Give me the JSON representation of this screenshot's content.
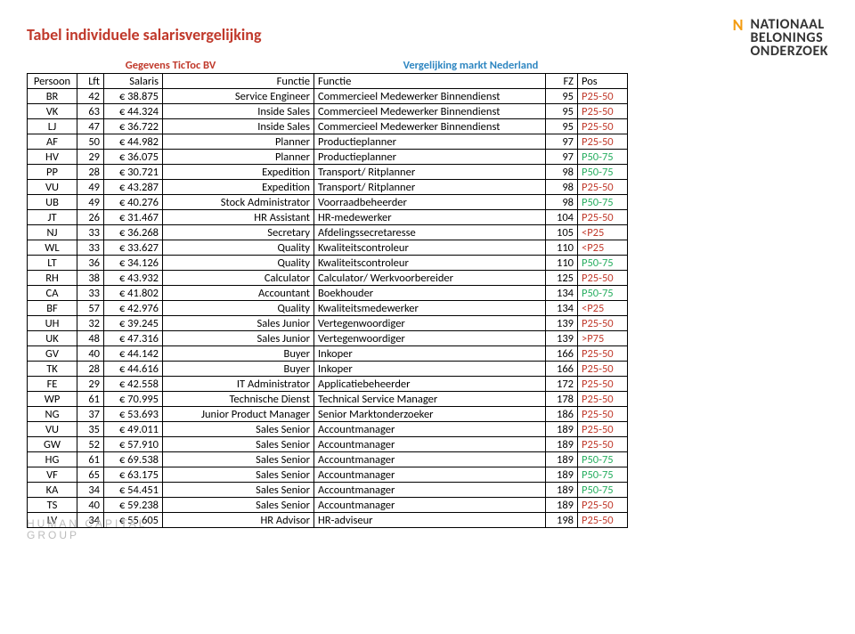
{
  "title": "Tabel individuele salarisvergelijking",
  "logo_lines": [
    "NATIONAAL",
    "BELONINGS",
    "ONDERZOEK"
  ],
  "footer_lines": [
    "HUMAN CAPITAL",
    "GROUP"
  ],
  "super_header_left": "Gegevens TicToc BV",
  "super_header_right": "Vergelijking markt Nederland",
  "columns": {
    "persoon": "Persoon",
    "lft": "Lft",
    "salaris": "Salaris",
    "functie1": "Functie",
    "functie2": "Functie",
    "fz": "FZ",
    "pos": "Pos"
  },
  "pos_color_map": {
    "P25-50": "pos-p25-50",
    "P50-75": "pos-p50-75",
    "<P25": "pos-ltp25",
    ">P75": "pos-gtp75"
  },
  "rows": [
    {
      "persoon": "BR",
      "lft": 42,
      "salaris": "€ 38.875",
      "functie1": "Service Engineer",
      "functie2": "Commercieel Medewerker Binnendienst",
      "fz": 95,
      "pos": "P25-50"
    },
    {
      "persoon": "VK",
      "lft": 63,
      "salaris": "€ 44.324",
      "functie1": "Inside Sales",
      "functie2": "Commercieel Medewerker Binnendienst",
      "fz": 95,
      "pos": "P25-50"
    },
    {
      "persoon": "LJ",
      "lft": 47,
      "salaris": "€ 36.722",
      "functie1": "Inside Sales",
      "functie2": "Commercieel Medewerker Binnendienst",
      "fz": 95,
      "pos": "P25-50"
    },
    {
      "persoon": "AF",
      "lft": 50,
      "salaris": "€ 44.982",
      "functie1": "Planner",
      "functie2": "Productieplanner",
      "fz": 97,
      "pos": "P25-50"
    },
    {
      "persoon": "HV",
      "lft": 29,
      "salaris": "€ 36.075",
      "functie1": "Planner",
      "functie2": "Productieplanner",
      "fz": 97,
      "pos": "P50-75"
    },
    {
      "persoon": "PP",
      "lft": 28,
      "salaris": "€ 30.721",
      "functie1": "Expedition",
      "functie2": "Transport/ Ritplanner",
      "fz": 98,
      "pos": "P50-75"
    },
    {
      "persoon": "VU",
      "lft": 49,
      "salaris": "€ 43.287",
      "functie1": "Expedition",
      "functie2": "Transport/ Ritplanner",
      "fz": 98,
      "pos": "P25-50"
    },
    {
      "persoon": "UB",
      "lft": 49,
      "salaris": "€ 40.276",
      "functie1": "Stock Administrator",
      "functie2": "Voorraadbeheerder",
      "fz": 98,
      "pos": "P50-75"
    },
    {
      "persoon": "JT",
      "lft": 26,
      "salaris": "€ 31.467",
      "functie1": "HR Assistant",
      "functie2": "HR-medewerker",
      "fz": 104,
      "pos": "P25-50"
    },
    {
      "persoon": "NJ",
      "lft": 33,
      "salaris": "€ 36.268",
      "functie1": "Secretary",
      "functie2": "Afdelingssecretaresse",
      "fz": 105,
      "pos": "<P25"
    },
    {
      "persoon": "WL",
      "lft": 33,
      "salaris": "€ 33.627",
      "functie1": "Quality",
      "functie2": "Kwaliteitscontroleur",
      "fz": 110,
      "pos": "<P25"
    },
    {
      "persoon": "LT",
      "lft": 36,
      "salaris": "€ 34.126",
      "functie1": "Quality",
      "functie2": "Kwaliteitscontroleur",
      "fz": 110,
      "pos": "P50-75"
    },
    {
      "persoon": "RH",
      "lft": 38,
      "salaris": "€ 43.932",
      "functie1": "Calculator",
      "functie2": "Calculator/ Werkvoorbereider",
      "fz": 125,
      "pos": "P25-50"
    },
    {
      "persoon": "CA",
      "lft": 33,
      "salaris": "€ 41.802",
      "functie1": "Accountant",
      "functie2": "Boekhouder",
      "fz": 134,
      "pos": "P50-75"
    },
    {
      "persoon": "BF",
      "lft": 57,
      "salaris": "€ 42.976",
      "functie1": "Quality",
      "functie2": "Kwaliteitsmedewerker",
      "fz": 134,
      "pos": "<P25"
    },
    {
      "persoon": "UH",
      "lft": 32,
      "salaris": "€ 39.245",
      "functie1": "Sales Junior",
      "functie2": "Vertegenwoordiger",
      "fz": 139,
      "pos": "P25-50"
    },
    {
      "persoon": "UK",
      "lft": 48,
      "salaris": "€ 47.316",
      "functie1": "Sales Junior",
      "functie2": "Vertegenwoordiger",
      "fz": 139,
      "pos": ">P75"
    },
    {
      "persoon": "GV",
      "lft": 40,
      "salaris": "€ 44.142",
      "functie1": "Buyer",
      "functie2": "Inkoper",
      "fz": 166,
      "pos": "P25-50"
    },
    {
      "persoon": "TK",
      "lft": 28,
      "salaris": "€ 44.616",
      "functie1": "Buyer",
      "functie2": "Inkoper",
      "fz": 166,
      "pos": "P25-50"
    },
    {
      "persoon": "FE",
      "lft": 29,
      "salaris": "€ 42.558",
      "functie1": "IT Administrator",
      "functie2": "Applicatiebeheerder",
      "fz": 172,
      "pos": "P25-50"
    },
    {
      "persoon": "WP",
      "lft": 61,
      "salaris": "€ 70.995",
      "functie1": "Technische Dienst",
      "functie2": "Technical Service Manager",
      "fz": 178,
      "pos": "P25-50"
    },
    {
      "persoon": "NG",
      "lft": 37,
      "salaris": "€ 53.693",
      "functie1": "Junior Product Manager",
      "functie2": "Senior Marktonderzoeker",
      "fz": 186,
      "pos": "P25-50"
    },
    {
      "persoon": "VU",
      "lft": 35,
      "salaris": "€ 49.011",
      "functie1": "Sales Senior",
      "functie2": "Accountmanager",
      "fz": 189,
      "pos": "P25-50"
    },
    {
      "persoon": "GW",
      "lft": 52,
      "salaris": "€ 57.910",
      "functie1": "Sales Senior",
      "functie2": "Accountmanager",
      "fz": 189,
      "pos": "P25-50"
    },
    {
      "persoon": "HG",
      "lft": 61,
      "salaris": "€ 69.538",
      "functie1": "Sales Senior",
      "functie2": "Accountmanager",
      "fz": 189,
      "pos": "P50-75"
    },
    {
      "persoon": "VF",
      "lft": 65,
      "salaris": "€ 63.175",
      "functie1": "Sales Senior",
      "functie2": "Accountmanager",
      "fz": 189,
      "pos": "P50-75"
    },
    {
      "persoon": "KA",
      "lft": 34,
      "salaris": "€ 54.451",
      "functie1": "Sales Senior",
      "functie2": "Accountmanager",
      "fz": 189,
      "pos": "P50-75"
    },
    {
      "persoon": "TS",
      "lft": 40,
      "salaris": "€ 59.238",
      "functie1": "Sales Senior",
      "functie2": "Accountmanager",
      "fz": 189,
      "pos": "P25-50"
    },
    {
      "persoon": "LV",
      "lft": 34,
      "salaris": "€ 55.605",
      "functie1": "HR Advisor",
      "functie2": "HR-adviseur",
      "fz": 198,
      "pos": "P25-50"
    }
  ]
}
